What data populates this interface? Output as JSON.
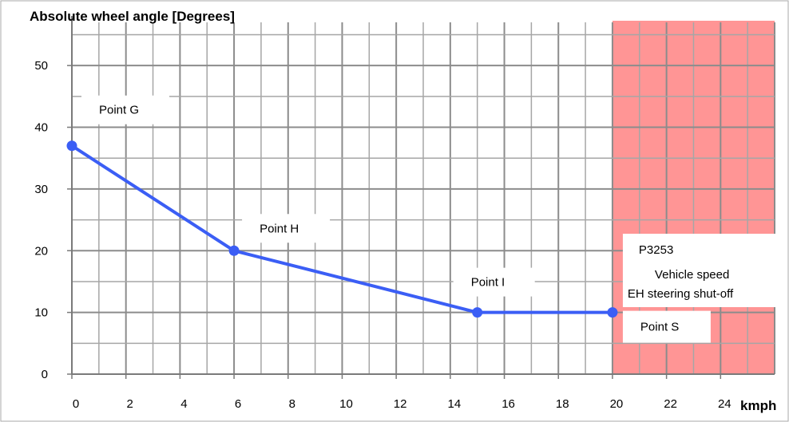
{
  "chart_data": {
    "type": "line",
    "title": "",
    "ylabel": "Absolute wheel angle [Degrees]",
    "xlabel": "kmph",
    "xlim": [
      0,
      26
    ],
    "ylim": [
      0,
      57
    ],
    "x_ticks": [
      "0",
      "2",
      "4",
      "6",
      "8",
      "10",
      "12",
      "14",
      "16",
      "18",
      "20",
      "22",
      "24"
    ],
    "y_ticks": [
      "0",
      "10",
      "20",
      "30",
      "40",
      "50"
    ],
    "grid": true,
    "series": [
      {
        "color": "#3B5EF5",
        "points": [
          {
            "x": 0,
            "y": 37
          },
          {
            "x": 6,
            "y": 20
          },
          {
            "x": 15,
            "y": 10
          },
          {
            "x": 20,
            "y": 10
          }
        ]
      }
    ],
    "point_labels": [
      {
        "text": "Point G",
        "x": 0,
        "y": 37
      },
      {
        "text": "Point H",
        "x": 6,
        "y": 20
      },
      {
        "text": "Point I",
        "x": 15,
        "y": 10
      },
      {
        "text": "Point S",
        "x": 20,
        "y": 10
      }
    ],
    "shaded_region": {
      "x_start": 20,
      "x_end": 26,
      "color": "#FF8A8A",
      "labels": [
        "P3253",
        "Vehicle speed",
        "EH steering shut-off"
      ]
    }
  }
}
